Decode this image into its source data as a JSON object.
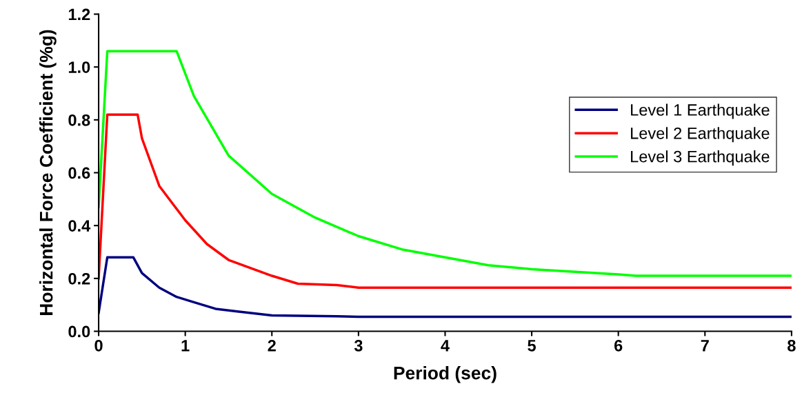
{
  "chart_data": {
    "type": "line",
    "xlabel": "Period (sec)",
    "ylabel": "Horizontal Force Coefficient (%g)",
    "xlim": [
      0,
      8
    ],
    "xticks": [
      0,
      1,
      2,
      3,
      4,
      5,
      6,
      7,
      8
    ],
    "ylim": [
      0,
      1.2
    ],
    "yticks": [
      {
        "value": 0,
        "label": "0.0"
      },
      {
        "value": 0.2,
        "label": "0.2"
      },
      {
        "value": 0.4,
        "label": "0.4"
      },
      {
        "value": 0.6,
        "label": "0.6"
      },
      {
        "value": 0.8,
        "label": "0.8"
      },
      {
        "value": 1.0,
        "label": "1.0"
      },
      {
        "value": 1.2,
        "label": "1.2"
      }
    ],
    "grid": false,
    "legend": "right",
    "marker": "none",
    "line_style": "solid",
    "series": [
      {
        "name": "Level 1 Earthquake",
        "color": "#000080",
        "x": [
          0,
          0.1,
          0.4,
          0.5,
          0.7,
          0.9,
          1.1,
          1.35,
          1.6,
          2,
          2.75,
          3,
          8
        ],
        "values": [
          0.07,
          0.28,
          0.28,
          0.22,
          0.165,
          0.13,
          0.11,
          0.085,
          0.075,
          0.06,
          0.057,
          0.055,
          0.055
        ]
      },
      {
        "name": "Level 2 Earthquake",
        "color": "#ff0000",
        "x": [
          0,
          0.1,
          0.45,
          0.5,
          0.7,
          1.0,
          1.25,
          1.5,
          2,
          2.3,
          2.75,
          3,
          8
        ],
        "values": [
          0.2,
          0.82,
          0.82,
          0.73,
          0.55,
          0.42,
          0.33,
          0.27,
          0.21,
          0.18,
          0.175,
          0.165,
          0.165
        ]
      },
      {
        "name": "Level 3 Earthquake",
        "color": "#00ff00",
        "x": [
          0,
          0.1,
          0.9,
          1.1,
          1.5,
          2,
          2.5,
          3,
          3.5,
          4,
          4.5,
          5,
          5.5,
          6,
          6.2,
          8
        ],
        "values": [
          0.47,
          1.06,
          1.06,
          0.89,
          0.665,
          0.52,
          0.43,
          0.36,
          0.31,
          0.28,
          0.25,
          0.235,
          0.225,
          0.215,
          0.21,
          0.21
        ]
      }
    ]
  }
}
